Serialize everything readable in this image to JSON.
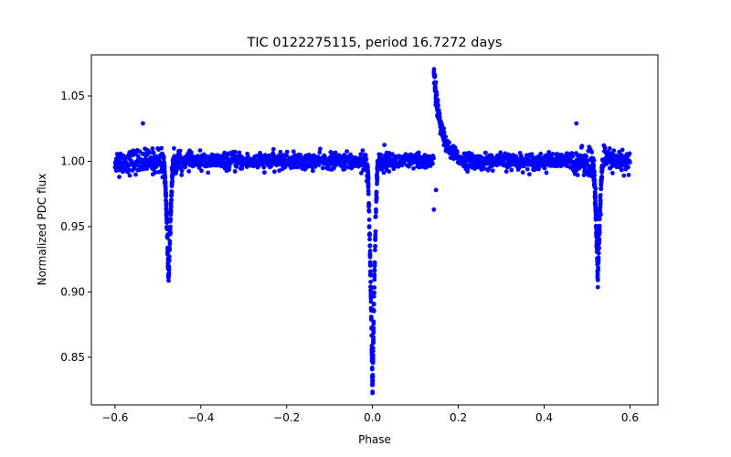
{
  "chart_data": {
    "type": "scatter",
    "title": "TIC 0122275115, period 16.7272 days",
    "xlabel": "Phase",
    "ylabel": "Normalized PDC flux",
    "xlim": [
      -0.655,
      0.665
    ],
    "ylim": [
      0.8135,
      1.0815
    ],
    "grid": false,
    "marker_color": "#0000ff",
    "x_ticks": [
      -0.6,
      -0.4,
      -0.2,
      0.0,
      0.2,
      0.4,
      0.6
    ],
    "x_tick_labels": [
      "−0.6",
      "−0.4",
      "−0.2",
      "0.0",
      "0.2",
      "0.4",
      "0.6"
    ],
    "y_ticks": [
      0.85,
      0.9,
      0.95,
      1.0,
      1.05
    ],
    "y_tick_labels": [
      "0.85",
      "0.90",
      "0.95",
      "1.00",
      "1.05"
    ],
    "series": [
      {
        "name": "Light curve",
        "x_range": [
          -0.6,
          0.6
        ],
        "baseline_flux": 1.0,
        "scatter": 0.004,
        "eclipses": [
          {
            "name": "Primary eclipse",
            "phase": 0.0,
            "min_flux": 0.822,
            "half_width": 0.013
          },
          {
            "name": "Secondary eclipse",
            "phase": -0.475,
            "min_flux": 0.908,
            "half_width": 0.012
          },
          {
            "name": "Secondary eclipse (wrapped)",
            "phase": 0.525,
            "min_flux": 0.908,
            "half_width": 0.012
          }
        ],
        "flare": {
          "phase": 0.143,
          "peak_flux": 1.069,
          "decay_to_phase": 0.22
        },
        "outliers": [
          {
            "x": 0.143,
            "y": 0.963
          },
          {
            "x": 0.148,
            "y": 0.978
          },
          {
            "x": -0.59,
            "y": 0.988
          },
          {
            "x": -0.535,
            "y": 1.029
          },
          {
            "x": 0.475,
            "y": 1.029
          }
        ]
      }
    ]
  }
}
